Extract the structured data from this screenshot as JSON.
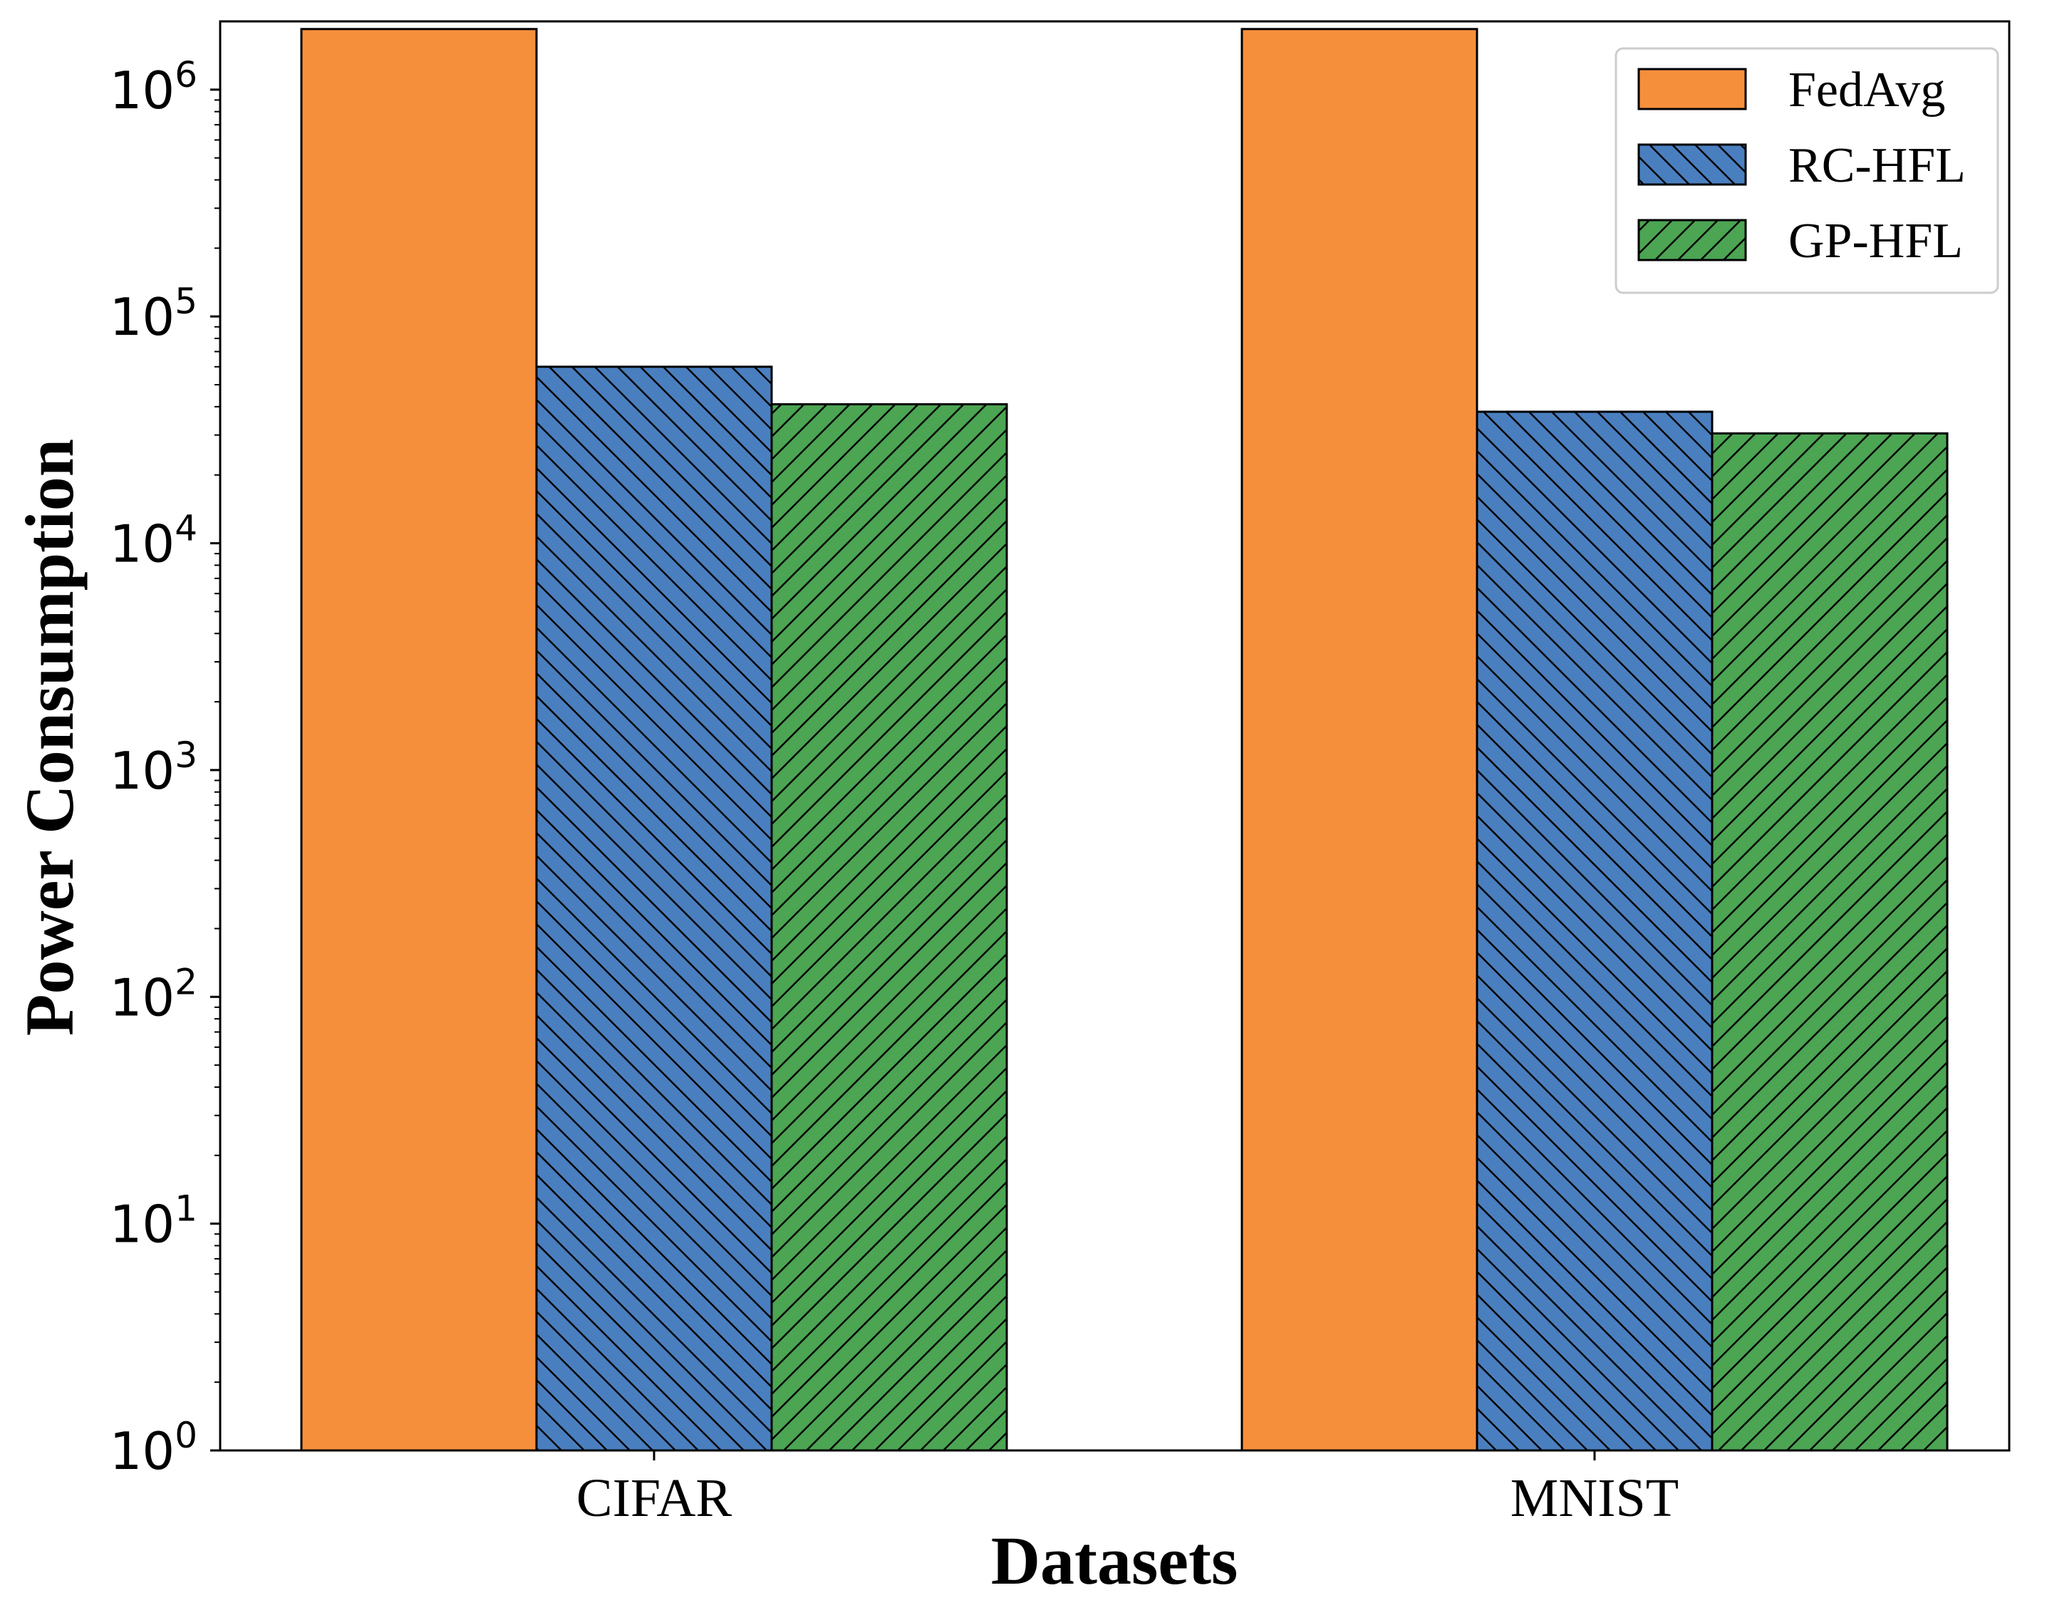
{
  "chart_data": {
    "type": "bar",
    "title": "",
    "xlabel": "Datasets",
    "ylabel": "Power Consumption",
    "yscale": "log",
    "ylim": [
      1,
      2000000
    ],
    "y_ticks": [
      {
        "value": 1,
        "base": "10",
        "exp": "0"
      },
      {
        "value": 10,
        "base": "10",
        "exp": "1"
      },
      {
        "value": 100,
        "base": "10",
        "exp": "2"
      },
      {
        "value": 1000,
        "base": "10",
        "exp": "3"
      },
      {
        "value": 10000,
        "base": "10",
        "exp": "4"
      },
      {
        "value": 100000,
        "base": "10",
        "exp": "5"
      },
      {
        "value": 1000000,
        "base": "10",
        "exp": "6"
      }
    ],
    "categories": [
      "CIFAR",
      "MNIST"
    ],
    "series": [
      {
        "name": "FedAvg",
        "values": [
          1850000,
          1850000
        ],
        "color": "#F68F3C",
        "hatch": "none"
      },
      {
        "name": "RC-HFL",
        "values": [
          60000,
          38000
        ],
        "color": "#4A7FBF",
        "hatch": "backslash"
      },
      {
        "name": "GP-HFL",
        "values": [
          41000,
          30500
        ],
        "color": "#4CA552",
        "hatch": "slash"
      }
    ],
    "legend_position": "top-right",
    "grid": false
  }
}
